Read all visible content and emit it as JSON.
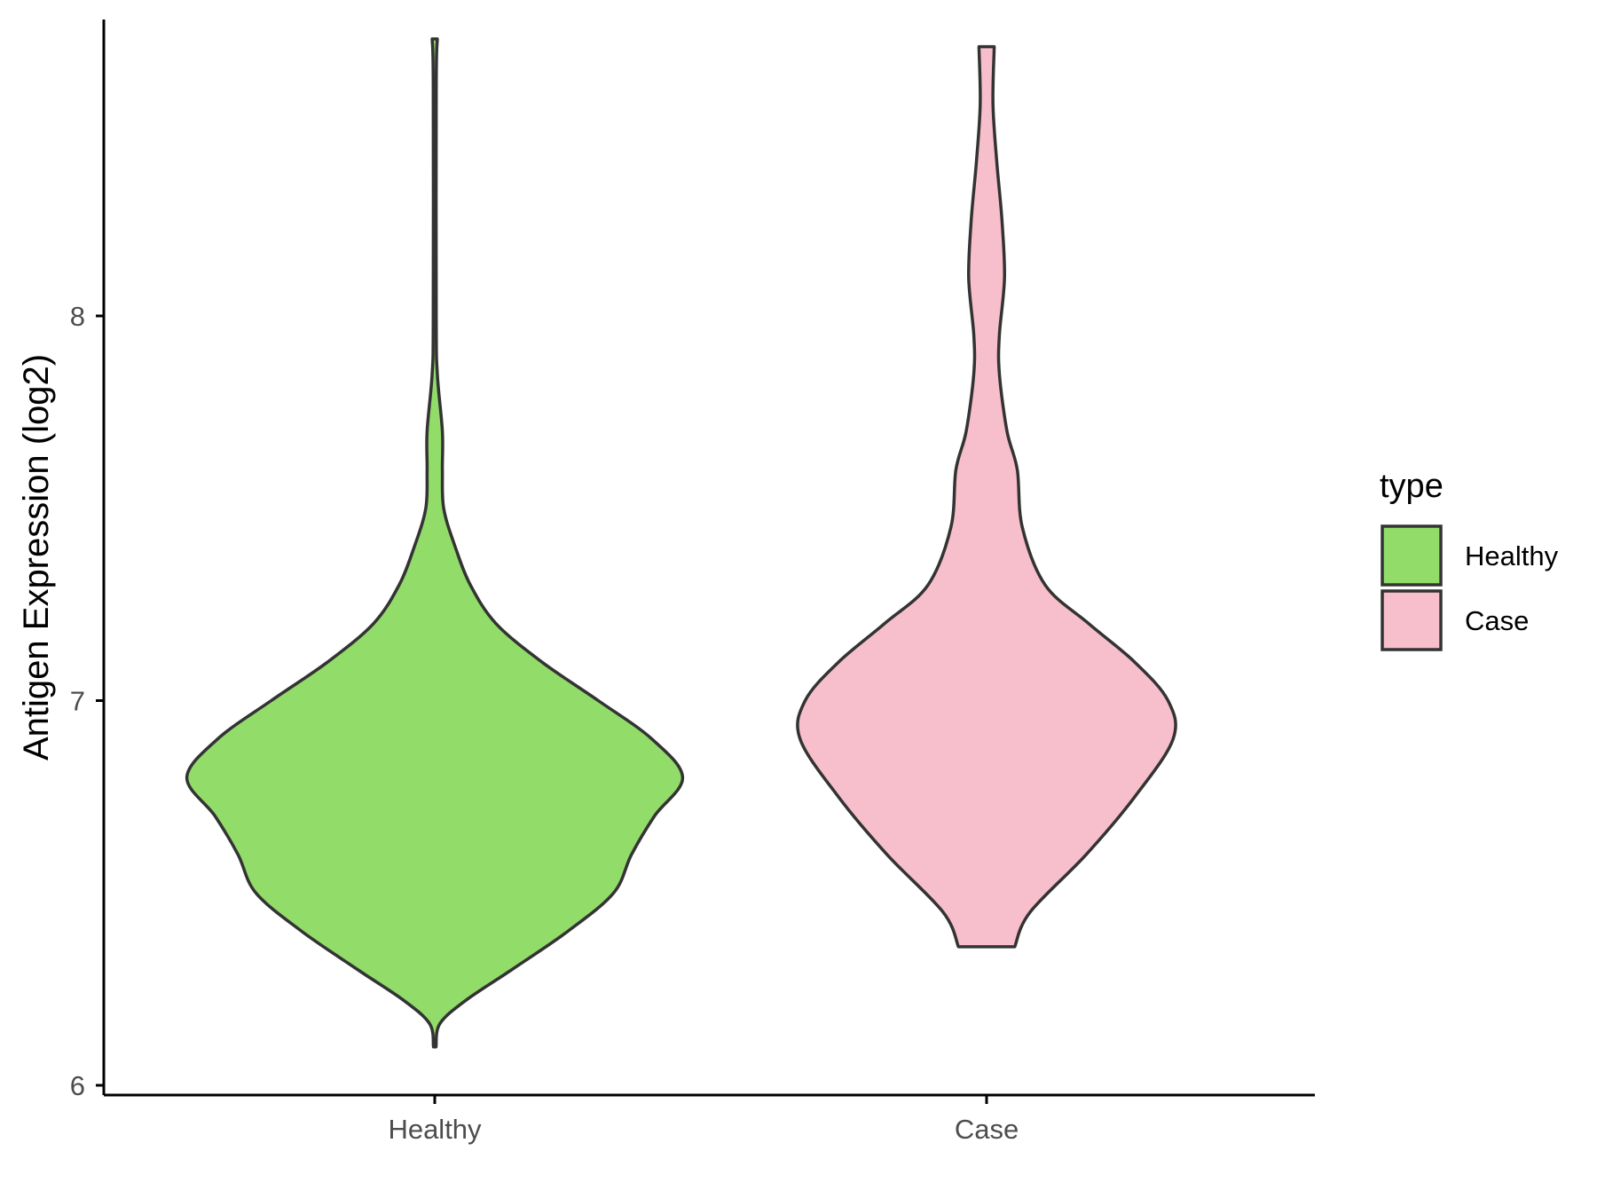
{
  "chart_data": {
    "type": "violin",
    "title": "",
    "xlabel": "",
    "ylabel": "Antigen Expression (log2)",
    "categories": [
      "Healthy",
      "Case"
    ],
    "ylim": [
      5.98,
      8.78
    ],
    "yticks": [
      6,
      7,
      8
    ],
    "grid": false,
    "legend": {
      "title": "type",
      "position": "right",
      "entries": [
        "Healthy",
        "Case"
      ]
    },
    "series": [
      {
        "name": "Healthy",
        "color": "#92dc6a",
        "range": [
          6.1,
          8.72
        ],
        "density_profile": [
          [
            6.1,
            0.005
          ],
          [
            6.16,
            0.02
          ],
          [
            6.22,
            0.12
          ],
          [
            6.3,
            0.3
          ],
          [
            6.4,
            0.52
          ],
          [
            6.5,
            0.7
          ],
          [
            6.6,
            0.77
          ],
          [
            6.7,
            0.86
          ],
          [
            6.8,
            0.97
          ],
          [
            6.9,
            0.85
          ],
          [
            7.0,
            0.64
          ],
          [
            7.1,
            0.42
          ],
          [
            7.2,
            0.24
          ],
          [
            7.3,
            0.14
          ],
          [
            7.4,
            0.08
          ],
          [
            7.5,
            0.035
          ],
          [
            7.6,
            0.03
          ],
          [
            7.7,
            0.03
          ],
          [
            7.85,
            0.01
          ],
          [
            8.0,
            0.006
          ],
          [
            8.6,
            0.006
          ],
          [
            8.72,
            0.01
          ]
        ]
      },
      {
        "name": "Case",
        "color": "#f7bfcb",
        "range": [
          6.36,
          8.7
        ],
        "density_profile": [
          [
            6.36,
            0.11
          ],
          [
            6.45,
            0.17
          ],
          [
            6.6,
            0.39
          ],
          [
            6.75,
            0.58
          ],
          [
            6.9,
            0.73
          ],
          [
            7.0,
            0.71
          ],
          [
            7.1,
            0.58
          ],
          [
            7.2,
            0.4
          ],
          [
            7.3,
            0.23
          ],
          [
            7.45,
            0.14
          ],
          [
            7.6,
            0.12
          ],
          [
            7.7,
            0.08
          ],
          [
            7.85,
            0.05
          ],
          [
            7.95,
            0.05
          ],
          [
            8.1,
            0.07
          ],
          [
            8.25,
            0.06
          ],
          [
            8.4,
            0.04
          ],
          [
            8.55,
            0.025
          ],
          [
            8.7,
            0.03
          ]
        ]
      }
    ]
  }
}
